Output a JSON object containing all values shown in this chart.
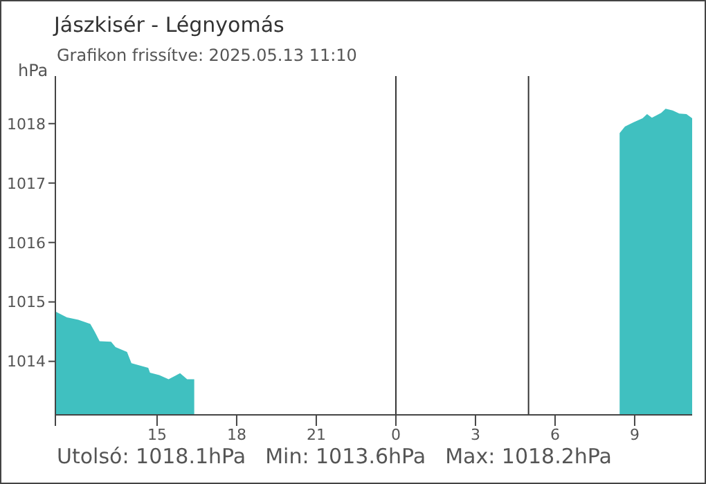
{
  "chart_data": {
    "type": "area",
    "title": "Jászkisér - Légnyomás",
    "subtitle": "Grafikon frissítve: 2025.05.13 11:10",
    "ylabel": "hPa",
    "annotations": [
      "Utolsó: 1018.1hPa",
      "Min: 1013.6hPa",
      "Max: 1018.2hPa"
    ],
    "x": [
      "2025-05-12T11:10",
      "2025-05-12T11:36",
      "2025-05-12T12:02",
      "2025-05-12T12:29",
      "2025-05-12T12:39",
      "2025-05-12T12:50",
      "2025-05-12T13:16",
      "2025-05-12T13:26",
      "2025-05-12T13:52",
      "2025-05-12T14:02",
      "2025-05-12T14:40",
      "2025-05-12T14:44",
      "2025-05-12T15:05",
      "2025-05-12T15:26",
      "2025-05-12T15:52",
      "2025-05-12T16:08",
      "2025-05-12T16:24",
      "2025-05-13T00:00",
      "2025-05-13T08:26",
      "2025-05-13T08:38",
      "2025-05-13T08:57",
      "2025-05-13T09:18",
      "2025-05-13T09:28",
      "2025-05-13T09:39",
      "2025-05-13T10:00",
      "2025-05-13T10:10",
      "2025-05-13T10:26",
      "2025-05-13T10:41",
      "2025-05-13T10:57",
      "2025-05-13T11:10"
    ],
    "series": [
      {
        "color": "#40c0c0",
        "values": [
          1014.84,
          1014.74,
          1014.7,
          1014.63,
          1014.5,
          1014.34,
          1014.33,
          1014.24,
          1014.16,
          1013.97,
          1013.89,
          1013.81,
          1013.77,
          1013.7,
          1013.8,
          1013.7,
          1013.7,
          null,
          1017.84,
          1017.95,
          1018.02,
          1018.09,
          1018.16,
          1018.1,
          1018.18,
          1018.25,
          1018.22,
          1018.17,
          1018.16,
          1018.09
        ]
      }
    ],
    "xlim": [
      "2025-05-12T11:10",
      "2025-05-13T11:10"
    ],
    "xticks": [
      {
        "value": "2025-05-12T11:10",
        "label": null
      },
      {
        "value": "2025-05-12T15:00",
        "label": "15"
      },
      {
        "value": "2025-05-12T18:00",
        "label": "18"
      },
      {
        "value": "2025-05-12T21:00",
        "label": "21"
      },
      {
        "value": "2025-05-13T00:00",
        "label": "0"
      },
      {
        "value": "2025-05-13T03:00",
        "label": "3"
      },
      {
        "value": "2025-05-13T06:00",
        "label": "6"
      },
      {
        "value": "2025-05-13T09:00",
        "label": "9"
      }
    ],
    "ylim": [
      1013.1,
      1018.8
    ],
    "yticks": [
      1014,
      1015,
      1016,
      1017,
      1018
    ],
    "ref_lines": [
      {
        "axis": "x",
        "value": "2025-05-13T00:00",
        "color": "#333333"
      },
      {
        "axis": "x",
        "value": "2025-05-13T05:00",
        "color": "#333333"
      }
    ],
    "grid": false,
    "legend": false
  }
}
